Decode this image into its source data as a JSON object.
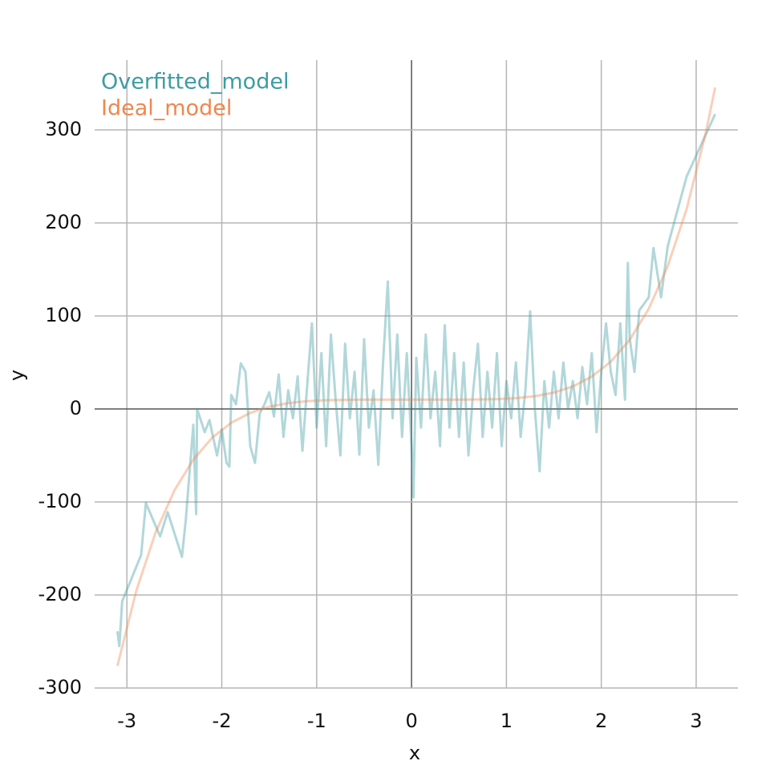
{
  "chart_data": {
    "type": "line",
    "xlabel": "x",
    "ylabel": "y",
    "xlim": [
      -3.34,
      3.44
    ],
    "ylim": [
      -300,
      375
    ],
    "xticks": [
      -3,
      -2,
      -1,
      0,
      1,
      2,
      3
    ],
    "yticks": [
      -300,
      -200,
      -100,
      0,
      100,
      200,
      300
    ],
    "grid": true,
    "legend": "upper left",
    "series": [
      {
        "name": "Overfitted_model",
        "color": "#3d9ca3",
        "x": [
          -3.1,
          -3.08,
          -3.05,
          -2.85,
          -2.8,
          -2.65,
          -2.57,
          -2.42,
          -2.38,
          -2.3,
          -2.27,
          -2.26,
          -2.18,
          -2.13,
          -2.05,
          -2.0,
          -1.95,
          -1.92,
          -1.9,
          -1.85,
          -1.8,
          -1.75,
          -1.7,
          -1.65,
          -1.6,
          -1.55,
          -1.5,
          -1.45,
          -1.4,
          -1.35,
          -1.3,
          -1.25,
          -1.2,
          -1.15,
          -1.1,
          -1.05,
          -1.0,
          -0.95,
          -0.9,
          -0.85,
          -0.8,
          -0.75,
          -0.7,
          -0.65,
          -0.6,
          -0.55,
          -0.5,
          -0.45,
          -0.4,
          -0.35,
          -0.3,
          -0.25,
          -0.2,
          -0.15,
          -0.1,
          -0.05,
          0,
          0.02,
          0.05,
          0.1,
          0.15,
          0.2,
          0.25,
          0.3,
          0.35,
          0.4,
          0.45,
          0.5,
          0.55,
          0.6,
          0.65,
          0.7,
          0.75,
          0.8,
          0.85,
          0.9,
          0.95,
          1.0,
          1.05,
          1.1,
          1.15,
          1.2,
          1.25,
          1.3,
          1.35,
          1.4,
          1.45,
          1.5,
          1.55,
          1.6,
          1.65,
          1.7,
          1.75,
          1.8,
          1.85,
          1.9,
          1.95,
          2.0,
          2.05,
          2.1,
          2.15,
          2.2,
          2.25,
          2.28,
          2.3,
          2.35,
          2.4,
          2.5,
          2.55,
          2.63,
          2.7,
          2.9,
          3.2
        ],
        "values": [
          -239,
          -255,
          -207,
          -157,
          -101,
          -137,
          -111,
          -159,
          -120,
          -17,
          -113,
          0,
          -25,
          -12,
          -50,
          -22,
          -58,
          -62,
          15,
          5,
          49,
          40,
          -40,
          -58,
          -5,
          5,
          18,
          -8,
          37,
          -30,
          20,
          -10,
          35,
          -45,
          25,
          92,
          -20,
          60,
          -40,
          80,
          10,
          -50,
          70,
          -10,
          40,
          -49,
          75,
          -20,
          20,
          -60,
          50,
          137,
          -10,
          80,
          -30,
          60,
          -40,
          -95,
          55,
          -20,
          80,
          -10,
          40,
          -40,
          90,
          -20,
          60,
          -30,
          50,
          -50,
          20,
          70,
          -30,
          40,
          -20,
          60,
          -40,
          30,
          -10,
          50,
          -30,
          20,
          105,
          0,
          -67,
          30,
          -20,
          40,
          -10,
          50,
          0,
          30,
          -10,
          45,
          5,
          60,
          -25,
          40,
          92,
          40,
          15,
          92,
          10,
          157,
          75,
          40,
          106,
          120,
          173,
          120,
          175,
          250,
          317
        ]
      },
      {
        "name": "Ideal_model",
        "color": "#f0874f",
        "x": [
          -3.1,
          -2.9,
          -2.7,
          -2.5,
          -2.3,
          -2.1,
          -1.9,
          -1.7,
          -1.5,
          -1.3,
          -1.1,
          -0.9,
          -0.7,
          -0.5,
          -0.3,
          -0.1,
          0.1,
          0.3,
          0.5,
          0.7,
          0.9,
          1.1,
          1.3,
          1.5,
          1.7,
          1.9,
          2.1,
          2.3,
          2.5,
          2.7,
          2.9,
          3.1,
          3.2
        ],
        "values": [
          -276.3,
          -195.1,
          -133.5,
          -87.7,
          -54.4,
          -30.8,
          -14.8,
          -4.2,
          2.4,
          6.3,
          8.4,
          9.4,
          9.8,
          10.0,
          10.0,
          10.0,
          10.0,
          10.0,
          10.0,
          10.2,
          10.6,
          11.6,
          13.7,
          17.6,
          24.2,
          34.8,
          50.8,
          74.4,
          107.7,
          153.5,
          215.1,
          296.3,
          345.5
        ]
      }
    ]
  }
}
